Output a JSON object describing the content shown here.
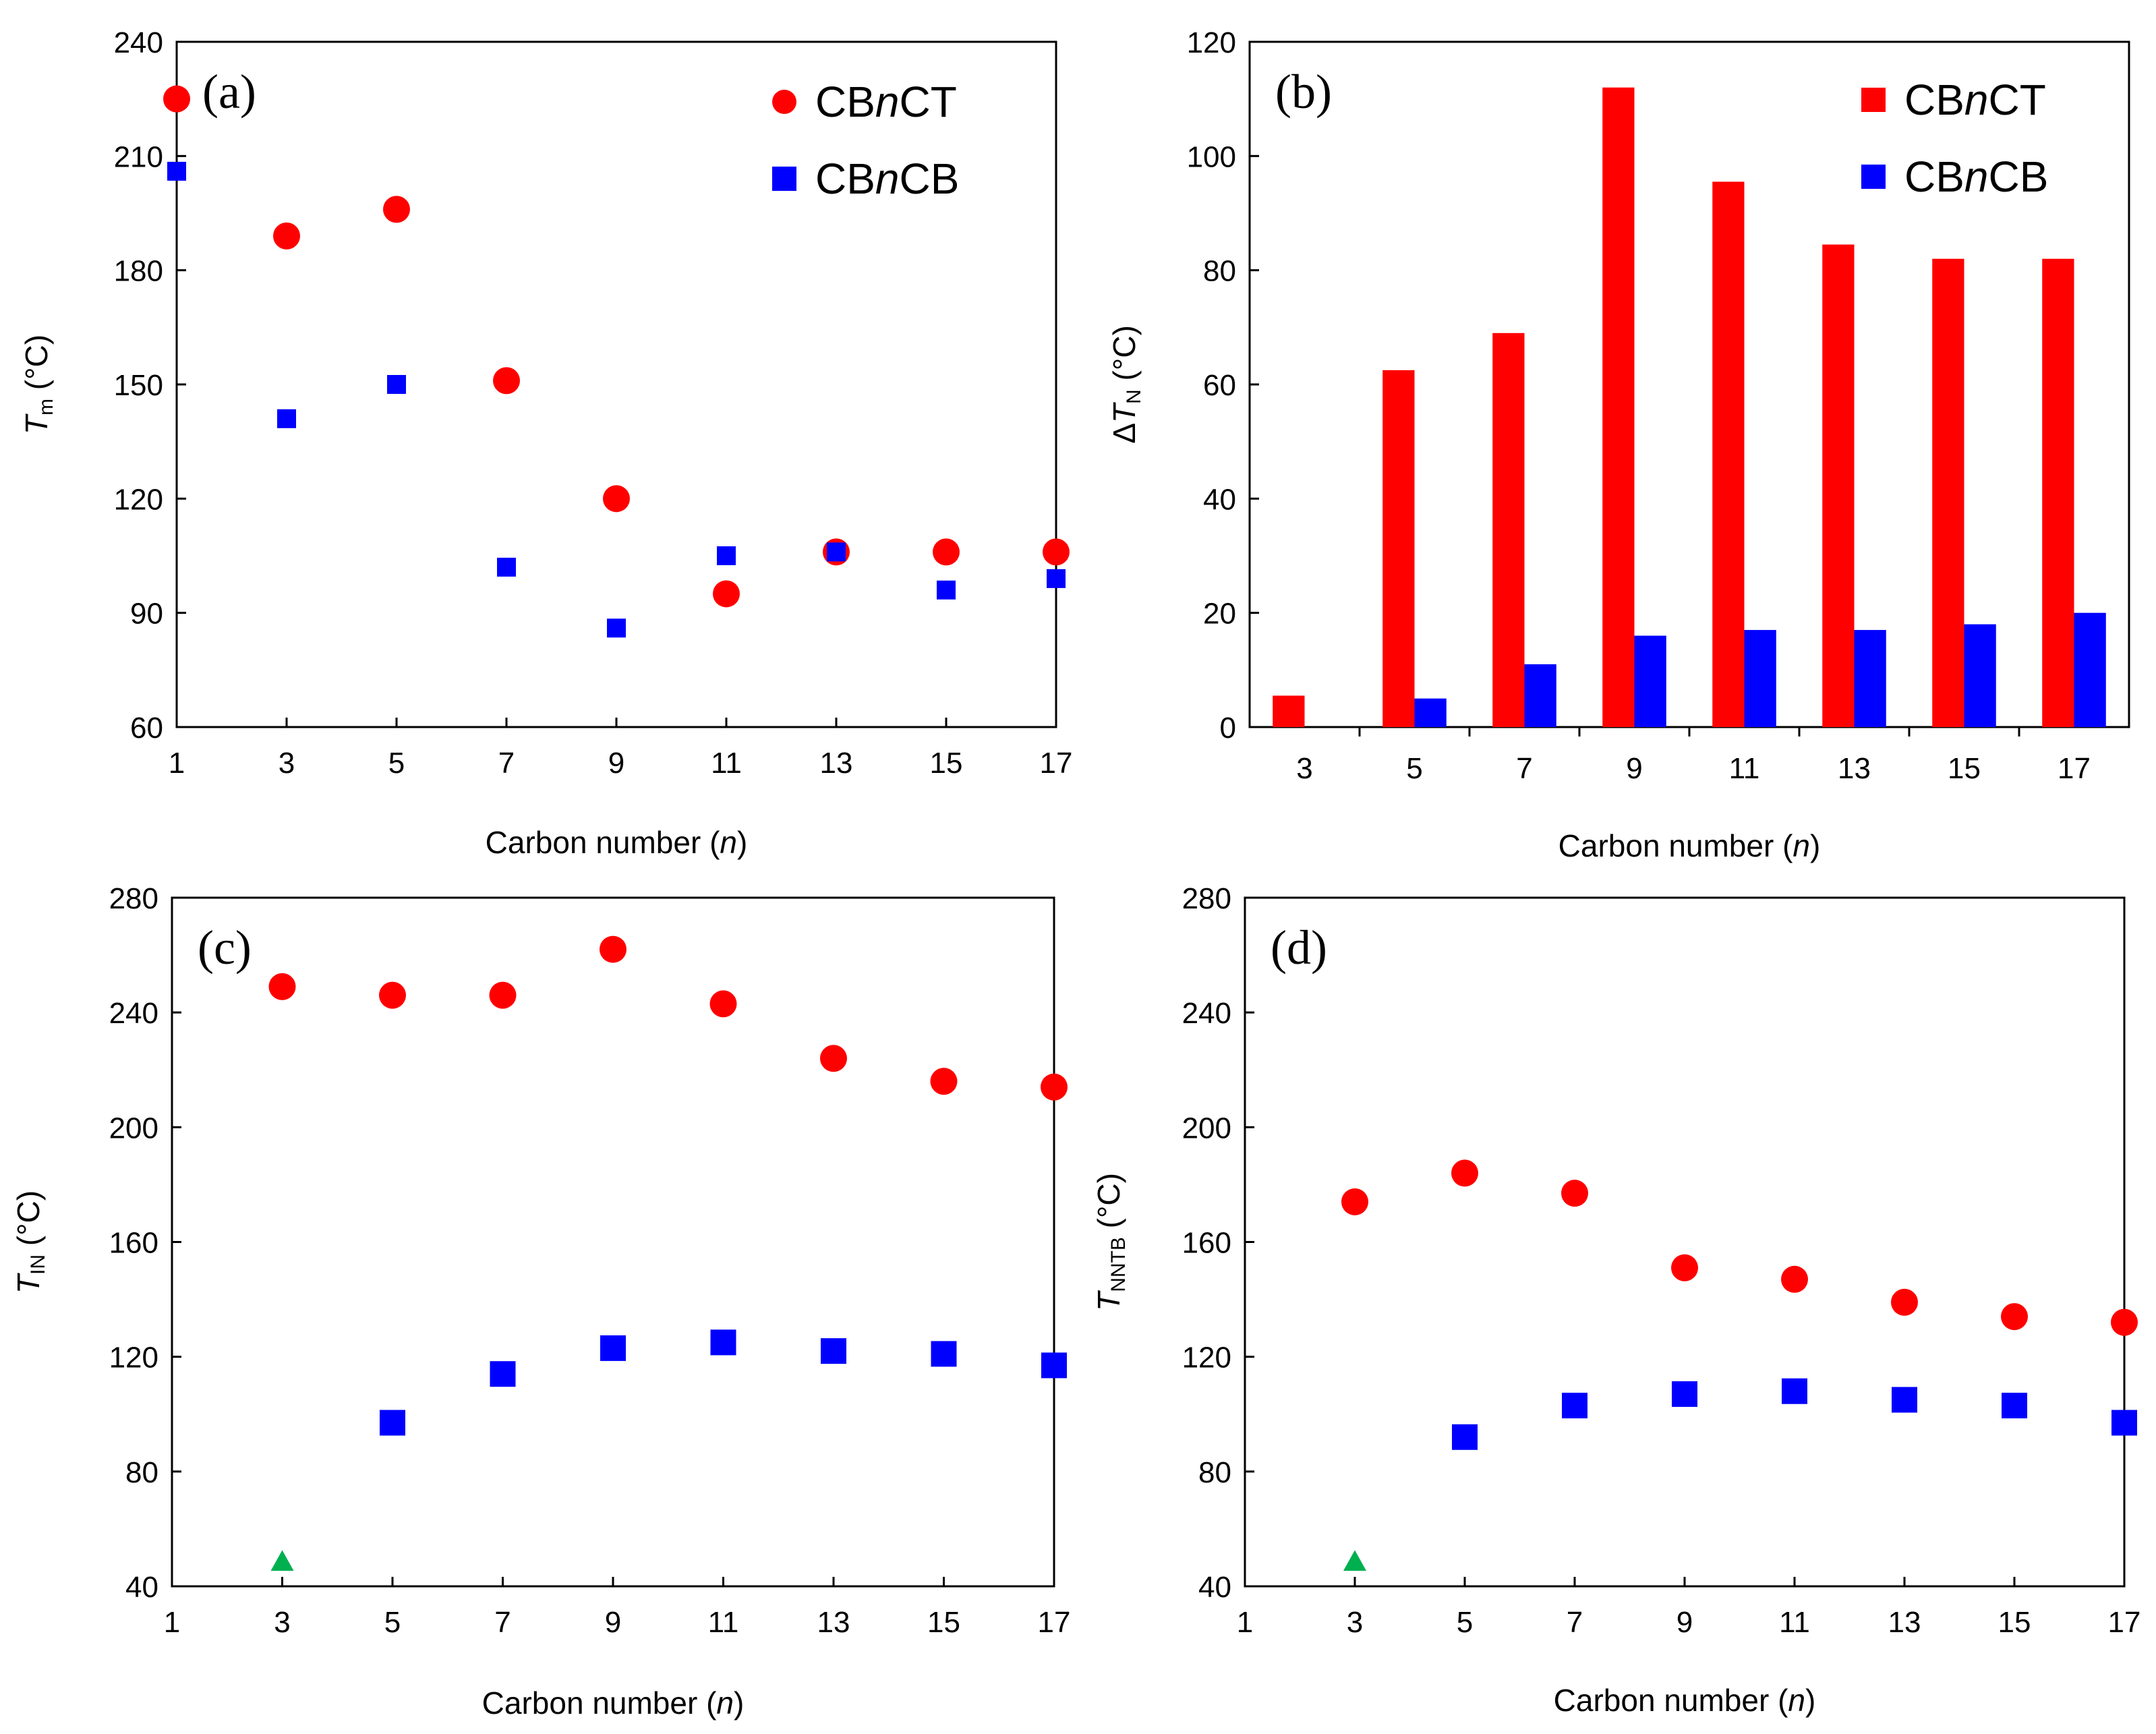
{
  "figure": {
    "series_colors": {
      "CBnCT": "#ff0000",
      "CBnCB": "#0000ff",
      "other": "#00b050"
    }
  },
  "chart_data": [
    {
      "panel": "(a)",
      "type": "scatter",
      "xlabel": "Carbon number (n)",
      "ylabel": "Tm (°C)",
      "ylabel_main": "T",
      "ylabel_sub": "m",
      "ylabel_unit": " (°C)",
      "xlim": [
        1,
        17
      ],
      "ylim": [
        60,
        240
      ],
      "xticks": [
        "1",
        "3",
        "5",
        "7",
        "9",
        "11",
        "13",
        "15",
        "17"
      ],
      "yticks": [
        "60",
        "90",
        "120",
        "150",
        "180",
        "210",
        "240"
      ],
      "legend": [
        {
          "label": "CBnCT",
          "pre": "CB",
          "italic": "n",
          "post": "CT",
          "marker": "circle",
          "color": "#ff0000"
        },
        {
          "label": "CBnCB",
          "pre": "CB",
          "italic": "n",
          "post": "CB",
          "marker": "square",
          "color": "#0000ff"
        }
      ],
      "series": [
        {
          "name": "CBnCT",
          "marker": "circle",
          "color": "#ff0000",
          "x": [
            1,
            3,
            5,
            7,
            9,
            11,
            13,
            15,
            17
          ],
          "y": [
            225,
            189,
            196,
            151,
            120,
            95,
            106,
            106,
            106
          ]
        },
        {
          "name": "CBnCB",
          "marker": "square",
          "color": "#0000ff",
          "x": [
            1,
            3,
            5,
            7,
            9,
            11,
            13,
            15,
            17
          ],
          "y": [
            206,
            141,
            150,
            102,
            86,
            105,
            106,
            96,
            99
          ]
        }
      ]
    },
    {
      "panel": "(b)",
      "type": "bar",
      "xlabel": "Carbon number (n)",
      "ylabel": "ΔTN (°C)",
      "ylabel_pre": "Δ",
      "ylabel_main": "T",
      "ylabel_sub": "N",
      "ylabel_unit": " (°C)",
      "categories": [
        "3",
        "5",
        "7",
        "9",
        "11",
        "13",
        "15",
        "17"
      ],
      "ylim": [
        0,
        120
      ],
      "yticks": [
        "0",
        "20",
        "40",
        "60",
        "80",
        "100",
        "120"
      ],
      "legend": [
        {
          "label": "CBnCT",
          "pre": "CB",
          "italic": "n",
          "post": "CT",
          "marker": "square",
          "color": "#ff0000"
        },
        {
          "label": "CBnCB",
          "pre": "CB",
          "italic": "n",
          "post": "CB",
          "marker": "square",
          "color": "#0000ff"
        }
      ],
      "series": [
        {
          "name": "CBnCT",
          "color": "#ff0000",
          "values": [
            5.5,
            62.5,
            69,
            112,
            95.5,
            84.5,
            82,
            82
          ]
        },
        {
          "name": "CBnCB",
          "color": "#0000ff",
          "values": [
            0,
            5,
            11,
            16,
            17,
            17,
            18,
            20
          ]
        }
      ]
    },
    {
      "panel": "(c)",
      "type": "scatter",
      "xlabel": "Carbon number (n)",
      "ylabel": "TIN (°C)",
      "ylabel_main": "T",
      "ylabel_sub": "IN",
      "ylabel_unit": " (°C)",
      "xlim": [
        1,
        17
      ],
      "ylim": [
        40,
        280
      ],
      "xticks": [
        "1",
        "3",
        "5",
        "7",
        "9",
        "11",
        "13",
        "15",
        "17"
      ],
      "yticks": [
        "40",
        "80",
        "120",
        "160",
        "200",
        "240",
        "280"
      ],
      "series": [
        {
          "name": "CBnCT",
          "marker": "circle",
          "color": "#ff0000",
          "x": [
            3,
            5,
            7,
            9,
            11,
            13,
            15,
            17
          ],
          "y": [
            249,
            246,
            246,
            262,
            243,
            224,
            216,
            214
          ]
        },
        {
          "name": "CBnCB",
          "marker": "square",
          "color": "#0000ff",
          "x": [
            5,
            7,
            9,
            11,
            13,
            15,
            17
          ],
          "y": [
            97,
            114,
            123,
            125,
            122,
            121,
            117
          ]
        },
        {
          "name": "other",
          "marker": "triangle",
          "color": "#00b050",
          "x": [
            3
          ],
          "y": [
            49
          ]
        }
      ]
    },
    {
      "panel": "(d)",
      "type": "scatter",
      "xlabel": "Carbon number (n)",
      "ylabel": "TNNTB (°C)",
      "ylabel_main": "T",
      "ylabel_sub": "NNTB",
      "ylabel_unit": " (°C)",
      "xlim": [
        1,
        17
      ],
      "ylim": [
        40,
        280
      ],
      "xticks": [
        "1",
        "3",
        "5",
        "7",
        "9",
        "11",
        "13",
        "15",
        "17"
      ],
      "yticks": [
        "40",
        "80",
        "120",
        "160",
        "200",
        "240",
        "280"
      ],
      "series": [
        {
          "name": "CBnCT",
          "marker": "circle",
          "color": "#ff0000",
          "x": [
            3,
            5,
            7,
            9,
            11,
            13,
            15,
            17
          ],
          "y": [
            174,
            184,
            177,
            151,
            147,
            139,
            134,
            132
          ]
        },
        {
          "name": "CBnCB",
          "marker": "square",
          "color": "#0000ff",
          "x": [
            5,
            7,
            9,
            11,
            13,
            15,
            17
          ],
          "y": [
            92,
            103,
            107,
            108,
            105,
            103,
            97
          ]
        },
        {
          "name": "other",
          "marker": "triangle",
          "color": "#00b050",
          "x": [
            3
          ],
          "y": [
            49
          ]
        }
      ]
    }
  ]
}
